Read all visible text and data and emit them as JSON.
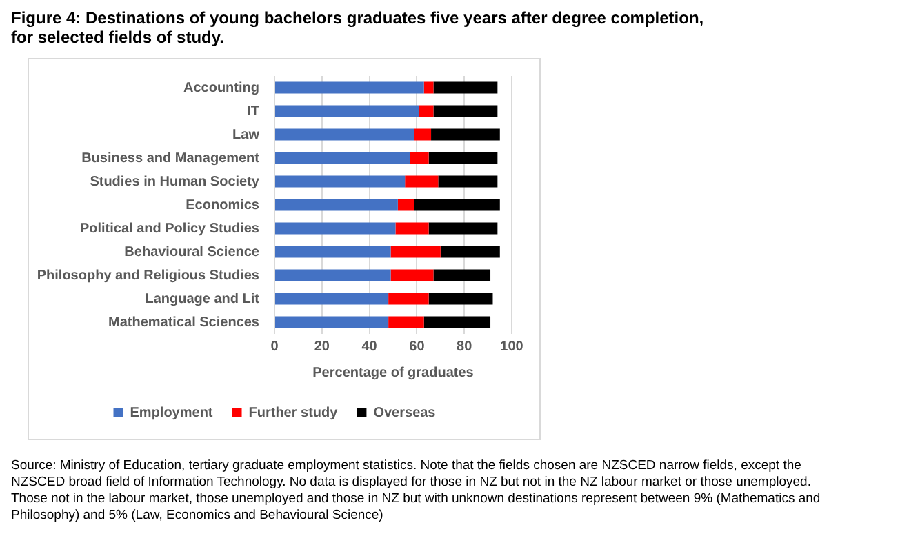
{
  "chart_data": {
    "type": "bar",
    "orientation": "horizontal",
    "stacked": true,
    "title": "Figure 4: Destinations of young bachelors graduates five years after degree completion, for selected fields of study.",
    "xlabel": "Percentage of graduates",
    "categories": [
      "Accounting",
      "IT",
      "Law",
      "Business and Management",
      "Studies in Human Society",
      "Economics",
      "Political and Policy Studies",
      "Behavioural Science",
      "Philosophy and Religious Studies",
      "Language and Lit",
      "Mathematical Sciences"
    ],
    "series": [
      {
        "name": "Employment",
        "color": "#4472c4",
        "values": [
          63,
          61,
          59,
          57,
          55,
          52,
          51,
          49,
          49,
          48,
          48
        ]
      },
      {
        "name": "Further study",
        "color": "#ff0000",
        "values": [
          4,
          6,
          7,
          8,
          14,
          7,
          14,
          21,
          18,
          17,
          15
        ]
      },
      {
        "name": "Overseas",
        "color": "#000000",
        "values": [
          27,
          27,
          29,
          29,
          25,
          36,
          29,
          25,
          24,
          27,
          28
        ]
      }
    ],
    "xlim": [
      0,
      100
    ],
    "xticks": [
      0,
      20,
      40,
      60,
      80,
      100
    ],
    "grid": "x",
    "legend": "bottom",
    "annotations": [
      "Source: Ministry of Education, tertiary graduate employment statistics.  Note that the fields chosen are NZSCED narrow fields, except the NZSCED broad field of Information Technology.  No data is displayed for those in NZ but not in the NZ labour market or those unemployed.  Those not in the labour market, those unemployed and those in NZ but with unknown destinations represent between 9% (Mathematics and Philosophy) and 5% (Law, Economics and Behavioural Science)"
    ]
  }
}
